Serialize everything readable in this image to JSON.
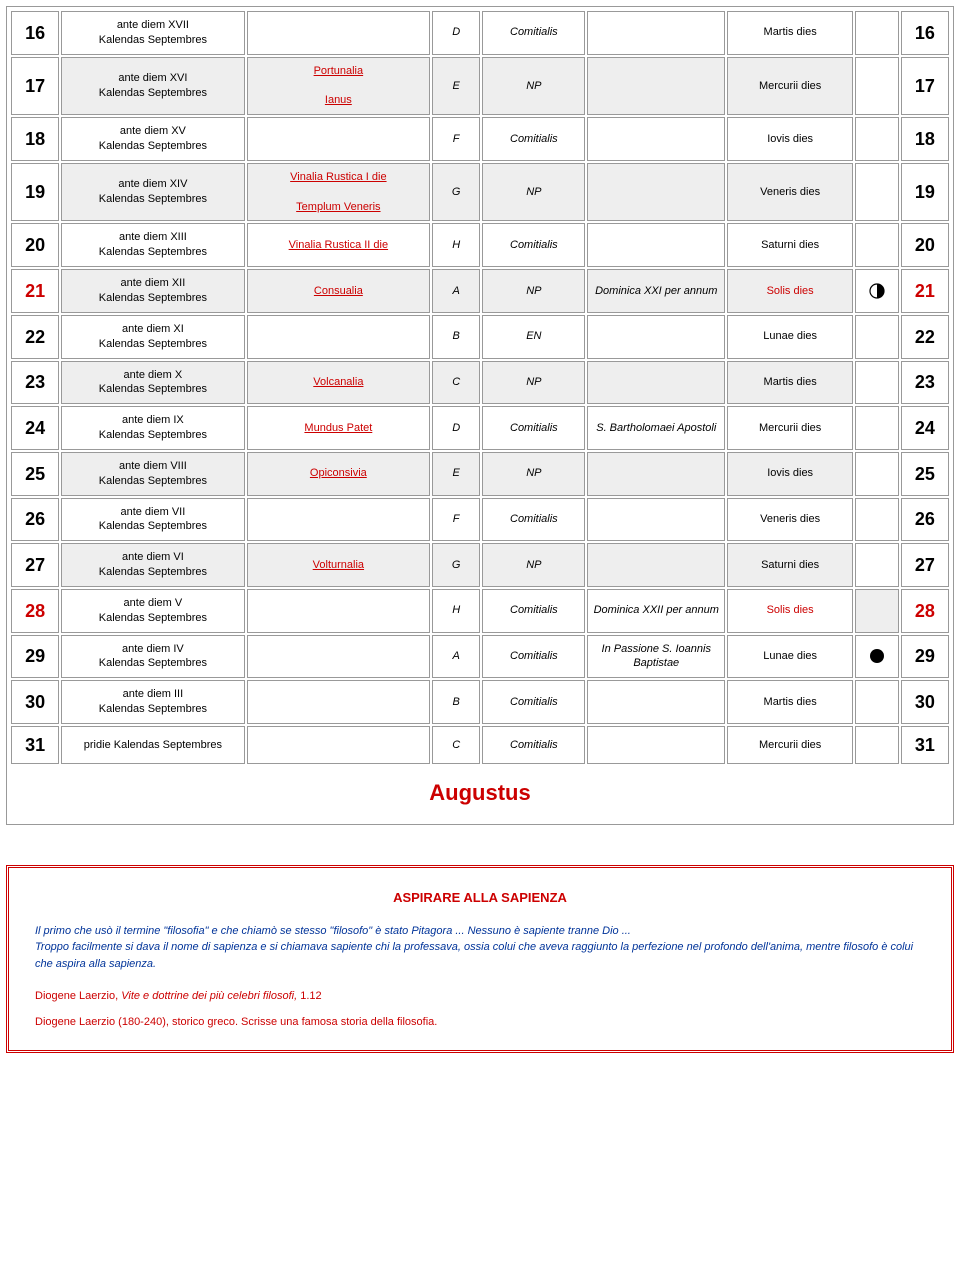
{
  "rows": [
    {
      "n": "16",
      "rom": "ante diem XVII Kalendas Septembres",
      "fest": [],
      "let": "D",
      "char": "Comitialis",
      "sanc": "",
      "dies": "Martis dies",
      "moon": "",
      "shade": false,
      "red": false
    },
    {
      "n": "17",
      "rom": "ante diem XVI Kalendas Septembres",
      "fest": [
        "Portunalia",
        "Ianus"
      ],
      "let": "E",
      "char": "NP",
      "sanc": "",
      "dies": "Mercurii dies",
      "moon": "",
      "shade": true,
      "red": false
    },
    {
      "n": "18",
      "rom": "ante diem XV Kalendas Septembres",
      "fest": [],
      "let": "F",
      "char": "Comitialis",
      "sanc": "",
      "dies": "Iovis dies",
      "moon": "",
      "shade": false,
      "red": false
    },
    {
      "n": "19",
      "rom": "ante diem XIV Kalendas Septembres",
      "fest": [
        "Vinalia Rustica I die",
        "Templum Veneris"
      ],
      "let": "G",
      "char": "NP",
      "sanc": "",
      "dies": "Veneris dies",
      "moon": "",
      "shade": true,
      "red": false
    },
    {
      "n": "20",
      "rom": "ante diem XIII Kalendas Septembres",
      "fest": [
        "Vinalia Rustica II die"
      ],
      "festlink": true,
      "let": "H",
      "char": "Comitialis",
      "sanc": "",
      "dies": "Saturni dies",
      "moon": "",
      "shade": false,
      "red": false
    },
    {
      "n": "21",
      "rom": "ante diem XII Kalendas Septembres",
      "fest": [
        "Consualia"
      ],
      "let": "A",
      "char": "NP",
      "sanc": "Dominica XXI per annum",
      "dies": "Solis dies",
      "diesred": true,
      "moon": "half",
      "shade": true,
      "red": true
    },
    {
      "n": "22",
      "rom": "ante diem XI Kalendas Septembres",
      "fest": [],
      "let": "B",
      "char": "EN",
      "sanc": "",
      "dies": "Lunae dies",
      "moon": "",
      "shade": false,
      "red": false
    },
    {
      "n": "23",
      "rom": "ante diem X Kalendas Septembres",
      "fest": [
        "Volcanalia"
      ],
      "let": "C",
      "char": "NP",
      "sanc": "",
      "dies": "Martis dies",
      "moon": "",
      "shade": true,
      "red": false
    },
    {
      "n": "24",
      "rom": "ante diem IX Kalendas Septembres",
      "fest": [
        "Mundus Patet"
      ],
      "let": "D",
      "char": "Comitialis",
      "sanc": "S. Bartholomaei Apostoli",
      "dies": "Mercurii dies",
      "moon": "",
      "shade": false,
      "red": false
    },
    {
      "n": "25",
      "rom": "ante diem VIII Kalendas Septembres",
      "fest": [
        "Opiconsivia"
      ],
      "let": "E",
      "char": "NP",
      "sanc": "",
      "dies": "Iovis dies",
      "moon": "",
      "shade": true,
      "red": false
    },
    {
      "n": "26",
      "rom": "ante diem VII Kalendas Septembres",
      "fest": [],
      "let": "F",
      "char": "Comitialis",
      "sanc": "",
      "dies": "Veneris dies",
      "moon": "",
      "shade": false,
      "red": false
    },
    {
      "n": "27",
      "rom": "ante diem VI Kalendas Septembres",
      "fest": [
        "Volturnalia"
      ],
      "let": "G",
      "char": "NP",
      "sanc": "",
      "dies": "Saturni dies",
      "moon": "",
      "shade": true,
      "red": false
    },
    {
      "n": "28",
      "rom": "ante diem V Kalendas Septembres",
      "fest": [],
      "let": "H",
      "char": "Comitialis",
      "sanc": "Dominica XXII per annum",
      "dies": "Solis dies",
      "diesred": true,
      "moon": "",
      "moonsh": true,
      "shade": false,
      "red": true
    },
    {
      "n": "29",
      "rom": "ante diem IV Kalendas Septembres",
      "fest": [],
      "let": "A",
      "char": "Comitialis",
      "sanc": "In Passione S. Ioannis Baptistae",
      "dies": "Lunae dies",
      "moon": "full",
      "shade": false,
      "red": false
    },
    {
      "n": "30",
      "rom": "ante diem III Kalendas Septembres",
      "fest": [],
      "let": "B",
      "char": "Comitialis",
      "sanc": "",
      "dies": "Martis dies",
      "moon": "",
      "shade": false,
      "red": false
    },
    {
      "n": "31",
      "rom": "pridie Kalendas Septembres",
      "fest": [],
      "let": "C",
      "char": "Comitialis",
      "sanc": "",
      "dies": "Mercurii dies",
      "moon": "",
      "shade": false,
      "red": false
    }
  ],
  "month": "Augustus",
  "quote": {
    "title": "ASPIRARE ALLA SAPIENZA",
    "p1": "Il primo che usò il termine \"filosofia\" e che chiamò se stesso \"filosofo\" è stato Pitagora ... Nessuno è sapiente tranne Dio ...",
    "p2": "Troppo facilmente si dava il nome di sapienza e si chiamava sapiente chi la professava, ossia colui che aveva raggiunto la perfezione nel profondo dell'anima, mentre filosofo è colui che aspira alla sapienza.",
    "author_pre": "Diogene Laerzio, ",
    "author_ital": "Vite e dottrine dei più celebri filosofi,",
    "author_post": " 1.12",
    "bio": "Diogene Laerzio (180-240), storico greco. Scrisse una famosa storia della filosofia."
  }
}
